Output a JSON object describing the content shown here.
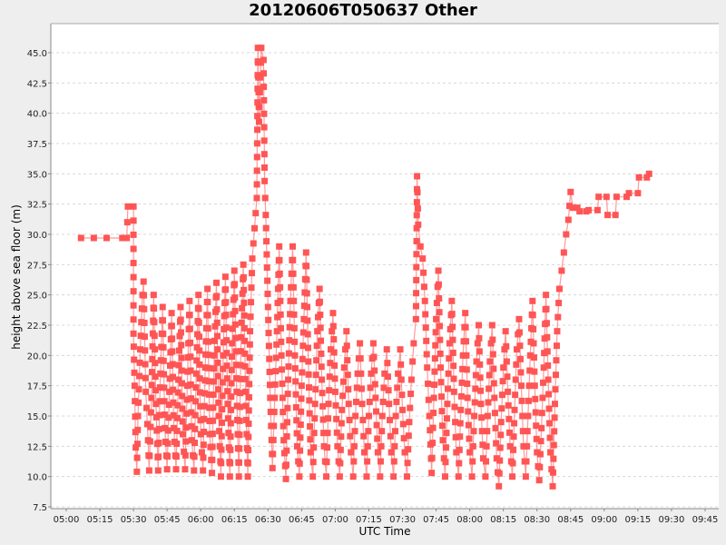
{
  "chart_data": {
    "type": "line",
    "title": "20120606T050637 Other",
    "xlabel": "UTC Time",
    "ylabel": "height above sea floor (m)",
    "ylim": [
      7.5,
      47.5
    ],
    "yticks": [
      "7.5",
      "10.0",
      "12.5",
      "15.0",
      "17.5",
      "20.0",
      "22.5",
      "25.0",
      "27.5",
      "30.0",
      "32.5",
      "35.0",
      "37.5",
      "40.0",
      "42.5",
      "45.0"
    ],
    "xticks": [
      "05:00",
      "05:15",
      "05:30",
      "05:45",
      "06:00",
      "06:15",
      "06:30",
      "06:45",
      "07:00",
      "07:15",
      "07:30",
      "07:45",
      "08:00",
      "08:15",
      "08:30",
      "08:45",
      "09:00",
      "09:15",
      "09:30",
      "09:45"
    ],
    "xlim_minutes_from_0500": [
      -7,
      292
    ],
    "grid": true,
    "legend": "none",
    "series_color": "#ff5555",
    "marker": "square",
    "series": [
      {
        "name": "height",
        "points_desc": "[minutes after 05:00, height m]",
        "anchors": [
          [
            6.6,
            29.7
          ],
          [
            18,
            29.7
          ],
          [
            25,
            29.7
          ],
          [
            27,
            29.7
          ],
          [
            27.5,
            32.3
          ],
          [
            30,
            32.3
          ],
          [
            30,
            21.8
          ],
          [
            30.5,
            17.5
          ],
          [
            31,
            12.4
          ],
          [
            31.5,
            10.4
          ],
          [
            32,
            15.0
          ],
          [
            33,
            20.5
          ],
          [
            34,
            25.0
          ],
          [
            34.5,
            26.1
          ],
          [
            35.5,
            17.0
          ],
          [
            36.5,
            13.0
          ],
          [
            37,
            10.5
          ],
          [
            38,
            16.5
          ],
          [
            39,
            25.0
          ],
          [
            40,
            16.0
          ],
          [
            41,
            10.5
          ],
          [
            42,
            18.5
          ],
          [
            43,
            24.0
          ],
          [
            44,
            14.0
          ],
          [
            45,
            10.6
          ],
          [
            46,
            17.0
          ],
          [
            47,
            23.5
          ],
          [
            48,
            14.0
          ],
          [
            49,
            10.6
          ],
          [
            50,
            18.0
          ],
          [
            51,
            24.0
          ],
          [
            52,
            13.5
          ],
          [
            53,
            10.6
          ],
          [
            54,
            17.5
          ],
          [
            55,
            24.5
          ],
          [
            56,
            13.0
          ],
          [
            57,
            10.5
          ],
          [
            58,
            18.5
          ],
          [
            59,
            25.0
          ],
          [
            60,
            13.5
          ],
          [
            61,
            10.5
          ],
          [
            62,
            19.0
          ],
          [
            63,
            25.5
          ],
          [
            64,
            13.5
          ],
          [
            65,
            10.3
          ],
          [
            66,
            20.0
          ],
          [
            67,
            26.0
          ],
          [
            68,
            15.0
          ],
          [
            69,
            10.0
          ],
          [
            70,
            20.0
          ],
          [
            71,
            26.5
          ],
          [
            72,
            16.0
          ],
          [
            73,
            10.0
          ],
          [
            74,
            21.0
          ],
          [
            75,
            27.0
          ],
          [
            76,
            17.0
          ],
          [
            77,
            10.0
          ],
          [
            78,
            21.5
          ],
          [
            79,
            27.5
          ],
          [
            80,
            17.0
          ],
          [
            81,
            10.0
          ],
          [
            82,
            22.0
          ],
          [
            83,
            28.0
          ],
          [
            84,
            30.5
          ],
          [
            85,
            33.0
          ],
          [
            85.5,
            45.4
          ],
          [
            86,
            39.3
          ],
          [
            87,
            45.4
          ],
          [
            88,
            44.4
          ],
          [
            88.5,
            34.4
          ],
          [
            89,
            31.6
          ],
          [
            90,
            24.0
          ],
          [
            91,
            16.5
          ],
          [
            92,
            10.7
          ],
          [
            93,
            16.5
          ],
          [
            94,
            22.0
          ],
          [
            95,
            29.0
          ],
          [
            96,
            20.0
          ],
          [
            97,
            13.0
          ],
          [
            98,
            9.8
          ],
          [
            99,
            18.0
          ],
          [
            100,
            24.5
          ],
          [
            101,
            29.0
          ],
          [
            102,
            20.0
          ],
          [
            103,
            12.5
          ],
          [
            104,
            10.0
          ],
          [
            105,
            17.5
          ],
          [
            106,
            23.0
          ],
          [
            107,
            28.5
          ],
          [
            108,
            19.5
          ],
          [
            109,
            12.0
          ],
          [
            110,
            10.0
          ],
          [
            111,
            16.0
          ],
          [
            112,
            22.0
          ],
          [
            113,
            25.5
          ],
          [
            114,
            18.0
          ],
          [
            115,
            12.5
          ],
          [
            116,
            10.0
          ],
          [
            117,
            16.0
          ],
          [
            118,
            20.5
          ],
          [
            119,
            23.5
          ],
          [
            120,
            17.0
          ],
          [
            121,
            12.5
          ],
          [
            122,
            10.0
          ],
          [
            123,
            15.5
          ],
          [
            124,
            19.0
          ],
          [
            125,
            22.0
          ],
          [
            126,
            16.0
          ],
          [
            127,
            12.0
          ],
          [
            128,
            10.0
          ],
          [
            129,
            15.0
          ],
          [
            130,
            18.5
          ],
          [
            131,
            21.0
          ],
          [
            132,
            16.0
          ],
          [
            133,
            12.0
          ],
          [
            134,
            10.0
          ],
          [
            135,
            15.0
          ],
          [
            136,
            18.5
          ],
          [
            137,
            21.0
          ],
          [
            138,
            16.5
          ],
          [
            139,
            12.0
          ],
          [
            140,
            10.0
          ],
          [
            141,
            15.0
          ],
          [
            142,
            18.5
          ],
          [
            143,
            20.5
          ],
          [
            144,
            16.0
          ],
          [
            145,
            12.0
          ],
          [
            146,
            10.0
          ],
          [
            147,
            15.0
          ],
          [
            148,
            18.5
          ],
          [
            149,
            20.5
          ],
          [
            150,
            15.5
          ],
          [
            151,
            12.0
          ],
          [
            152,
            10.0
          ],
          [
            153,
            14.5
          ],
          [
            154,
            18.0
          ],
          [
            155,
            21.0
          ],
          [
            156,
            23.0
          ],
          [
            156.5,
            34.8
          ],
          [
            157,
            30.8
          ],
          [
            158,
            29.0
          ],
          [
            159,
            28.0
          ],
          [
            160,
            24.5
          ],
          [
            161,
            19.0
          ],
          [
            162,
            15.0
          ],
          [
            163,
            10.3
          ],
          [
            164,
            16.5
          ],
          [
            165,
            23.0
          ],
          [
            166,
            27.0
          ],
          [
            167,
            19.0
          ],
          [
            168,
            13.0
          ],
          [
            169,
            10.0
          ],
          [
            170,
            16.0
          ],
          [
            171,
            21.0
          ],
          [
            172,
            24.5
          ],
          [
            173,
            17.0
          ],
          [
            174,
            12.0
          ],
          [
            175,
            10.0
          ],
          [
            176,
            15.5
          ],
          [
            177,
            20.0
          ],
          [
            178,
            23.5
          ],
          [
            179,
            16.5
          ],
          [
            180,
            12.0
          ],
          [
            181,
            10.0
          ],
          [
            182,
            15.0
          ],
          [
            183,
            19.5
          ],
          [
            184,
            22.5
          ],
          [
            185,
            16.0
          ],
          [
            186,
            11.5
          ],
          [
            187,
            10.0
          ],
          [
            188,
            15.0
          ],
          [
            189,
            19.5
          ],
          [
            190,
            22.5
          ],
          [
            191,
            16.5
          ],
          [
            192,
            11.5
          ],
          [
            193,
            9.2
          ],
          [
            194,
            14.5
          ],
          [
            195,
            19.0
          ],
          [
            196,
            22.0
          ],
          [
            197,
            17.0
          ],
          [
            198,
            12.5
          ],
          [
            199,
            10.0
          ],
          [
            200,
            15.5
          ],
          [
            201,
            20.5
          ],
          [
            202,
            23.0
          ],
          [
            203,
            17.5
          ],
          [
            204,
            12.5
          ],
          [
            205,
            10.0
          ],
          [
            206,
            15.0
          ],
          [
            207,
            20.0
          ],
          [
            208,
            24.5
          ],
          [
            209,
            17.5
          ],
          [
            210,
            12.0
          ],
          [
            211,
            9.7
          ],
          [
            212,
            14.0
          ],
          [
            213,
            19.0
          ],
          [
            214,
            25.0
          ],
          [
            215,
            18.0
          ],
          [
            216,
            12.0
          ],
          [
            217,
            9.2
          ],
          [
            218,
            16.0
          ],
          [
            219,
            22.0
          ],
          [
            220,
            25.5
          ],
          [
            221,
            27.0
          ],
          [
            222,
            28.5
          ],
          [
            223,
            30.0
          ],
          [
            224,
            31.2
          ],
          [
            225,
            33.5
          ],
          [
            226,
            32.2
          ],
          [
            228,
            32.2
          ],
          [
            229,
            31.9
          ],
          [
            232,
            31.9
          ],
          [
            233,
            32.0
          ],
          [
            237,
            32.0
          ],
          [
            237.5,
            33.1
          ],
          [
            241,
            33.1
          ],
          [
            241.5,
            31.6
          ],
          [
            245,
            31.6
          ],
          [
            245.5,
            33.1
          ],
          [
            250,
            33.1
          ],
          [
            251,
            33.4
          ],
          [
            255,
            33.4
          ],
          [
            255.5,
            34.7
          ],
          [
            259,
            34.7
          ],
          [
            260,
            35.0
          ]
        ]
      }
    ]
  }
}
